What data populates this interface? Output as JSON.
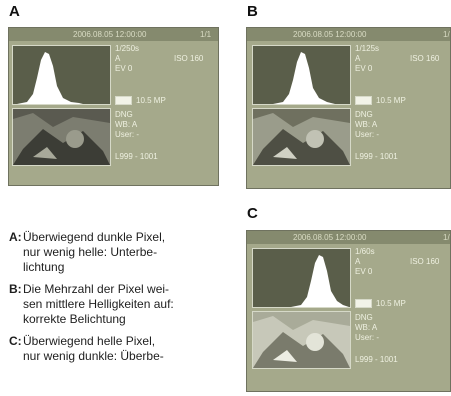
{
  "panels": [
    {
      "label": "A",
      "datetime": "2006.08.05 12:00:00",
      "frame": "1/1",
      "shutter": "1/250s",
      "mode": "A",
      "ev": "EV 0",
      "iso": "ISO 160",
      "mp": "10.5 MP",
      "format": "DNG",
      "wb": "WB: A",
      "user": "User: -",
      "range": "L999 - 1001"
    },
    {
      "label": "B",
      "datetime": "2006.08.05 12:00:00",
      "frame": "1/",
      "shutter": "1/125s",
      "mode": "A",
      "ev": "EV 0",
      "iso": "ISO 160",
      "mp": "10.5 MP",
      "format": "DNG",
      "wb": "WB: A",
      "user": "User: -",
      "range": "L999 - 1001"
    },
    {
      "label": "C",
      "datetime": "2006.08.05 12:00:00",
      "frame": "1/",
      "shutter": "1/60s",
      "mode": "A",
      "ev": "EV 0",
      "iso": "ISO 160",
      "mp": "10.5 MP",
      "format": "DNG",
      "wb": "WB: A",
      "user": "User: -",
      "range": "L999 - 1001"
    }
  ],
  "captions": [
    {
      "key": "A:",
      "lines": [
        "Überwiegend dunkle Pixel,",
        "nur wenig helle: Unterbe-",
        "lichtung"
      ]
    },
    {
      "key": "B:",
      "lines": [
        "Die Mehrzahl der Pixel wei-",
        "sen mittlere Helligkeiten auf:",
        "korrekte Belichtung"
      ]
    },
    {
      "key": "C:",
      "lines": [
        "Überwiegend helle Pixel,",
        "nur wenig dunkle: Überbe-"
      ]
    }
  ],
  "colors": {
    "screen_bg": "#a5a98b",
    "header_bg": "#858a6e",
    "histogram_bg": "#5a5e4a",
    "histogram_fill": "#ffffff"
  }
}
